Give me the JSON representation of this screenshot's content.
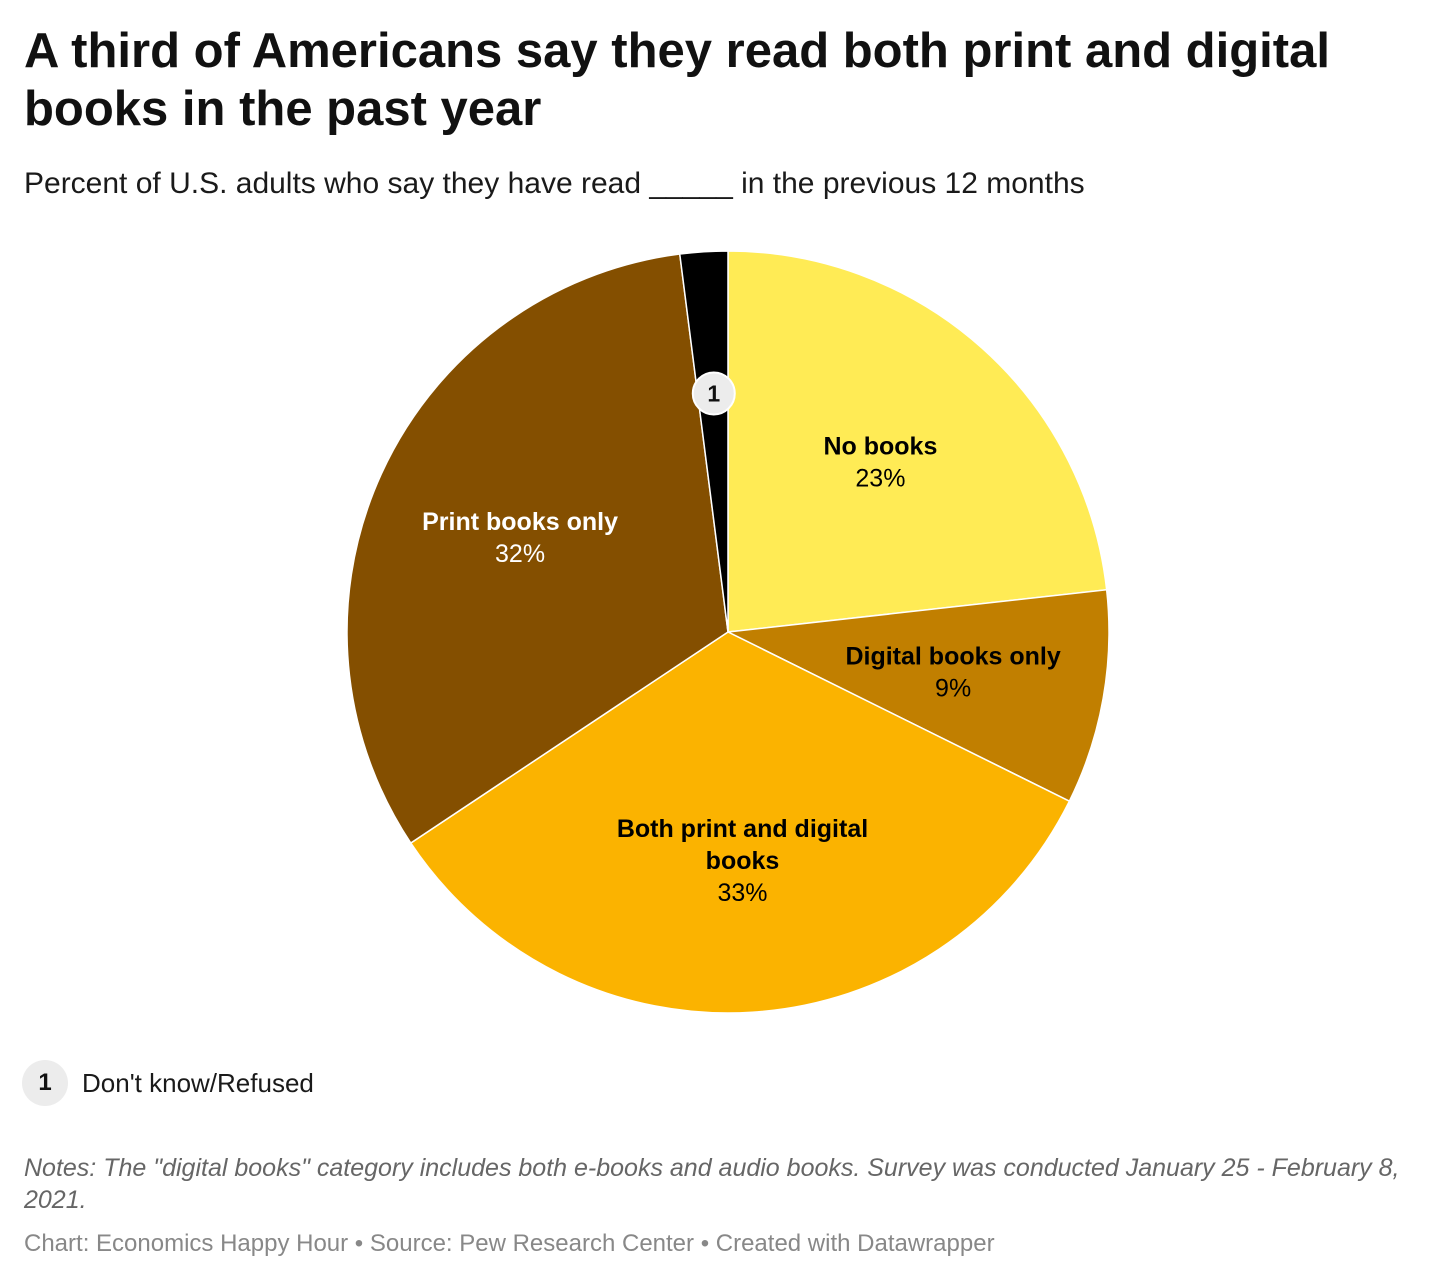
{
  "title": "A third of Americans say they read both print and digital books in the past year",
  "subtitle": "Percent of U.S. adults who say they have read _____ in the previous 12 months",
  "chart_data": {
    "type": "pie",
    "slices": [
      {
        "label": "No books",
        "value": 23,
        "display": "23%",
        "color": "#FFEB55",
        "label_color": "#000000"
      },
      {
        "label": "Digital books only",
        "value": 9,
        "display": "9%",
        "color": "#C17F00",
        "label_color": "#000000"
      },
      {
        "label": "Both print and digital books",
        "display_lines": [
          "Both print and digital",
          "books"
        ],
        "value": 33,
        "display": "33%",
        "color": "#FBB300",
        "label_color": "#000000"
      },
      {
        "label": "Print books only",
        "value": 32,
        "display": "32%",
        "color": "#844F00",
        "label_color": "#FFFFFF"
      },
      {
        "label": "Don't know/Refused",
        "value": 2,
        "marker": "1",
        "color": "#000000"
      }
    ],
    "start": "12 o'clock",
    "direction": "clockwise"
  },
  "legend": {
    "marker": "1",
    "text": "Don't know/Refused"
  },
  "notes": "Notes: The \"digital books\" category includes both e-books and audio books. Survey was conducted January 25 - February 8, 2021.",
  "credits": "Chart: Economics Happy Hour • Source: Pew Research Center • Created with Datawrapper"
}
